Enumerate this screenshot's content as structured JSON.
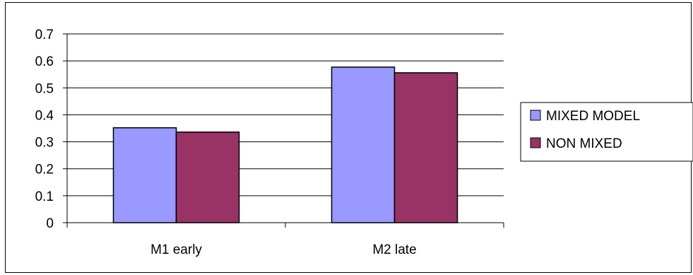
{
  "chart_data": {
    "type": "bar",
    "categories": [
      "M1 early",
      "M2 late"
    ],
    "series": [
      {
        "name": "MIXED MODEL",
        "values": [
          0.352,
          0.577
        ],
        "color": "#9999FF"
      },
      {
        "name": "NON MIXED",
        "values": [
          0.336,
          0.556
        ],
        "color": "#993366"
      }
    ],
    "yticks": [
      "0",
      "0.1",
      "0.2",
      "0.3",
      "0.4",
      "0.5",
      "0.6",
      "0.7"
    ],
    "ylim": [
      0,
      0.7
    ],
    "grid": true,
    "legend": "right",
    "title": "",
    "xlabel": "",
    "ylabel": ""
  }
}
